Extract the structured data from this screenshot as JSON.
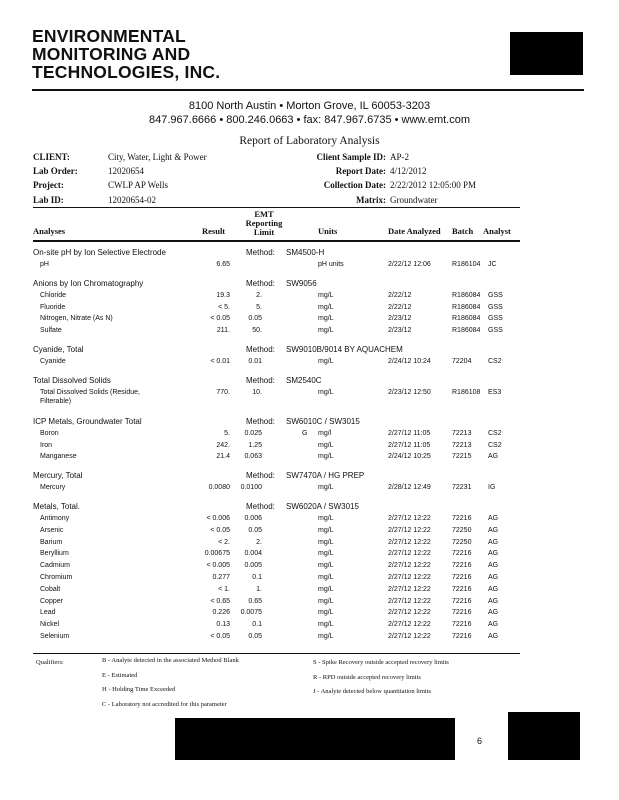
{
  "company": {
    "line1": "ENVIRONMENTAL",
    "line2": "MONITORING AND",
    "line3": "TECHNOLOGIES, INC."
  },
  "address": {
    "line1": "8100 North Austin • Morton Grove, IL 60053-3203",
    "line2": "847.967.6666 • 800.246.0663 • fax: 847.967.6735 • www.emt.com"
  },
  "title": "Report of Laboratory Analysis",
  "info": {
    "client_label": "CLIENT:",
    "client": "City, Water, Light & Power",
    "lab_order_label": "Lab Order:",
    "lab_order": "12020654",
    "project_label": "Project:",
    "project": "CWLP AP Wells",
    "lab_id_label": "Lab ID:",
    "lab_id": "12020654-02",
    "sample_id_label": "Client Sample ID:",
    "sample_id": "AP-2",
    "report_date_label": "Report Date:",
    "report_date": "4/12/2012",
    "collection_date_label": "Collection Date:",
    "collection_date": "2/22/2012 12:05:00 PM",
    "matrix_label": "Matrix:",
    "matrix": "Groundwater"
  },
  "columns": {
    "analyses": "Analyses",
    "result": "Result",
    "rl1": "EMT",
    "rl2": "Reporting",
    "rl3": "Limit",
    "units": "Units",
    "date": "Date Analyzed",
    "batch": "Batch",
    "analyst": "Analyst"
  },
  "method_label": "Method:",
  "sections": [
    {
      "name": "On-site pH by Ion Selective Electrode",
      "method": "SM4500-H",
      "rows": [
        {
          "analyte": "pH",
          "result": "6.65",
          "rl": "",
          "q": "",
          "units": "pH units",
          "date": "2/22/12 12:06",
          "batch": "R186104",
          "analyst": "JC"
        }
      ]
    },
    {
      "name": "Anions by Ion Chromatography",
      "method": "SW9056",
      "rows": [
        {
          "analyte": "Chloride",
          "result": "19.3",
          "rl": "2.",
          "q": "",
          "units": "mg/L",
          "date": "2/22/12",
          "batch": "R186084",
          "analyst": "GSS"
        },
        {
          "analyte": "Fluoride",
          "result": "< 5.",
          "rl": "5.",
          "q": "",
          "units": "mg/L",
          "date": "2/22/12",
          "batch": "R186084",
          "analyst": "GSS"
        },
        {
          "analyte": "Nitrogen, Nitrate (As N)",
          "result": "< 0.05",
          "rl": "0.05",
          "q": "",
          "units": "mg/L",
          "date": "2/23/12",
          "batch": "R186084",
          "analyst": "GSS"
        },
        {
          "analyte": "Sulfate",
          "result": "211.",
          "rl": "50.",
          "q": "",
          "units": "mg/L",
          "date": "2/23/12",
          "batch": "R186084",
          "analyst": "GSS"
        }
      ]
    },
    {
      "name": "Cyanide, Total",
      "method": "SW9010B/9014 BY AQUACHEM",
      "rows": [
        {
          "analyte": "Cyanide",
          "result": "< 0.01",
          "rl": "0.01",
          "q": "",
          "units": "mg/L",
          "date": "2/24/12 10:24",
          "batch": "72204",
          "analyst": "CS2"
        }
      ]
    },
    {
      "name": "Total Dissolved Solids",
      "method": "SM2540C",
      "rows": [
        {
          "analyte": "Total Dissolved Solids (Residue,",
          "analyte2": "Filterable)",
          "result": "770.",
          "rl": "10.",
          "q": "",
          "units": "mg/L",
          "date": "2/23/12 12:50",
          "batch": "R186108",
          "analyst": "ES3"
        }
      ]
    },
    {
      "name": "ICP Metals, Groundwater Total",
      "method": "SW6010C / SW3015",
      "rows": [
        {
          "analyte": "Boron",
          "result": "5.",
          "rl": "0.025",
          "q": "G",
          "units": "mg/l",
          "date": "2/27/12 11:05",
          "batch": "72213",
          "analyst": "CS2"
        },
        {
          "analyte": "Iron",
          "result": "242.",
          "rl": "1.25",
          "q": "",
          "units": "mg/L",
          "date": "2/27/12 11:05",
          "batch": "72213",
          "analyst": "CS2"
        },
        {
          "analyte": "Manganese",
          "result": "21.4",
          "rl": "0.063",
          "q": "",
          "units": "mg/L",
          "date": "2/24/12 10:25",
          "batch": "72215",
          "analyst": "AG"
        }
      ]
    },
    {
      "name": "Mercury, Total",
      "method": "SW7470A / HG PREP",
      "rows": [
        {
          "analyte": "Mercury",
          "result": "0.0080",
          "rl": "0.0100",
          "q": "",
          "units": "mg/L",
          "date": "2/28/12 12:49",
          "batch": "72231",
          "analyst": "IG"
        }
      ]
    },
    {
      "name": "Metals, Total.",
      "method": "SW6020A / SW3015",
      "rows": [
        {
          "analyte": "Antimony",
          "result": "< 0.006",
          "rl": "0.006",
          "q": "",
          "units": "mg/L",
          "date": "2/27/12 12:22",
          "batch": "72216",
          "analyst": "AG"
        },
        {
          "analyte": "Arsenic",
          "result": "< 0.05",
          "rl": "0.05",
          "q": "",
          "units": "mg/L",
          "date": "2/27/12 12:22",
          "batch": "72250",
          "analyst": "AG"
        },
        {
          "analyte": "Barium",
          "result": "< 2.",
          "rl": "2.",
          "q": "",
          "units": "mg/L",
          "date": "2/27/12 12:22",
          "batch": "72250",
          "analyst": "AG"
        },
        {
          "analyte": "Beryllium",
          "result": "0.00675",
          "rl": "0.004",
          "q": "",
          "units": "mg/L",
          "date": "2/27/12 12:22",
          "batch": "72216",
          "analyst": "AG"
        },
        {
          "analyte": "Cadmium",
          "result": "< 0.005",
          "rl": "0.005",
          "q": "",
          "units": "mg/L",
          "date": "2/27/12 12:22",
          "batch": "72216",
          "analyst": "AG"
        },
        {
          "analyte": "Chromium",
          "result": "0.277",
          "rl": "0.1",
          "q": "",
          "units": "mg/L",
          "date": "2/27/12 12:22",
          "batch": "72216",
          "analyst": "AG"
        },
        {
          "analyte": "Cobalt",
          "result": "< 1.",
          "rl": "1.",
          "q": "",
          "units": "mg/L",
          "date": "2/27/12 12:22",
          "batch": "72216",
          "analyst": "AG"
        },
        {
          "analyte": "Copper",
          "result": "< 0.65",
          "rl": "0.65",
          "q": "",
          "units": "mg/L",
          "date": "2/27/12 12:22",
          "batch": "72216",
          "analyst": "AG"
        },
        {
          "analyte": "Lead",
          "result": "0.226",
          "rl": "0.0075",
          "q": "",
          "units": "mg/L",
          "date": "2/27/12 12:22",
          "batch": "72216",
          "analyst": "AG"
        },
        {
          "analyte": "Nickel",
          "result": "0.13",
          "rl": "0.1",
          "q": "",
          "units": "mg/L",
          "date": "2/27/12 12:22",
          "batch": "72216",
          "analyst": "AG"
        },
        {
          "analyte": "Selenium",
          "result": "< 0.05",
          "rl": "0.05",
          "q": "",
          "units": "mg/L",
          "date": "2/27/12 12:22",
          "batch": "72216",
          "analyst": "AG"
        }
      ]
    }
  ],
  "qualifiers": {
    "label": "Qualifiers:",
    "left": [
      "B - Analyte detected in the associated Method Blank",
      "E - Estimated",
      "H - Holding Time Exceeded",
      "C - Laboratory not accredited for this parameter"
    ],
    "right": [
      "S - Spike Recovery outside accepted recovery limits",
      "R - RPD outside accepted recovery limits",
      "J - Analyte detected below quantitation limits"
    ]
  },
  "page_number": "6"
}
